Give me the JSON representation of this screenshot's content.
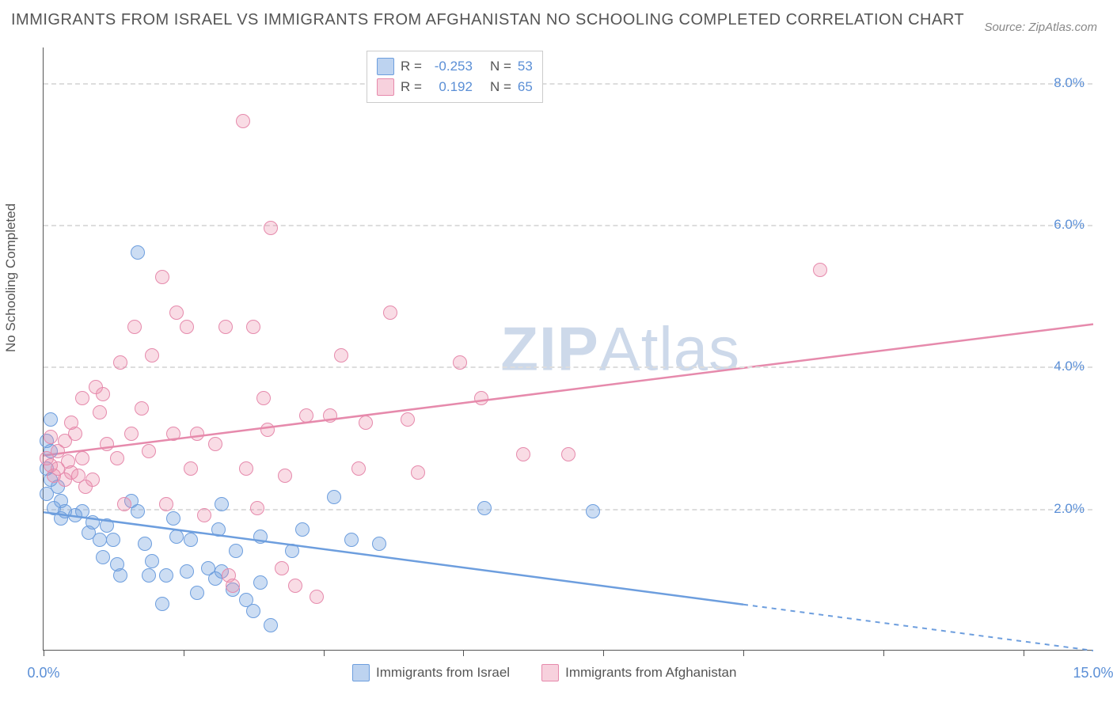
{
  "title": "IMMIGRANTS FROM ISRAEL VS IMMIGRANTS FROM AFGHANISTAN NO SCHOOLING COMPLETED CORRELATION CHART",
  "source": "Source: ZipAtlas.com",
  "ylabel": "No Schooling Completed",
  "watermark_bold": "ZIP",
  "watermark_rest": "Atlas",
  "chart": {
    "type": "scatter",
    "xlim": [
      0,
      15
    ],
    "ylim": [
      0,
      8.5
    ],
    "background_color": "#ffffff",
    "grid_color": "#dddddd",
    "axis_color": "#555555",
    "yticks": [
      2,
      4,
      6,
      8
    ],
    "ytick_labels": [
      "2.0%",
      "4.0%",
      "6.0%",
      "8.0%"
    ],
    "xticks": [
      0,
      2,
      4,
      6,
      8,
      10,
      12,
      14
    ],
    "xtick_labels_shown": {
      "0": "0.0%",
      "15": "15.0%"
    },
    "series": [
      {
        "name": "Immigrants from Israel",
        "color": "#6d9ede",
        "fill": "rgba(109,158,222,0.35)",
        "marker_size": 18,
        "R": "-0.253",
        "N": "53",
        "trend": {
          "x1": 0,
          "y1": 1.95,
          "x2": 15,
          "y2": 0.0,
          "solid_until_x": 10.0
        },
        "points": [
          [
            0.05,
            2.95
          ],
          [
            0.05,
            2.55
          ],
          [
            0.1,
            2.4
          ],
          [
            0.1,
            2.8
          ],
          [
            0.15,
            2.0
          ],
          [
            0.1,
            3.25
          ],
          [
            0.2,
            2.3
          ],
          [
            0.25,
            2.1
          ],
          [
            0.25,
            1.85
          ],
          [
            0.3,
            1.95
          ],
          [
            0.45,
            1.9
          ],
          [
            0.55,
            1.95
          ],
          [
            0.65,
            1.65
          ],
          [
            0.7,
            1.8
          ],
          [
            0.8,
            1.55
          ],
          [
            0.85,
            1.3
          ],
          [
            0.9,
            1.75
          ],
          [
            1.0,
            1.55
          ],
          [
            1.05,
            1.2
          ],
          [
            1.1,
            1.05
          ],
          [
            1.25,
            2.1
          ],
          [
            1.35,
            5.6
          ],
          [
            1.35,
            1.95
          ],
          [
            1.45,
            1.5
          ],
          [
            1.5,
            1.05
          ],
          [
            1.55,
            1.25
          ],
          [
            1.7,
            0.65
          ],
          [
            1.75,
            1.05
          ],
          [
            1.85,
            1.85
          ],
          [
            1.9,
            1.6
          ],
          [
            2.05,
            1.1
          ],
          [
            2.1,
            1.55
          ],
          [
            2.2,
            0.8
          ],
          [
            2.35,
            1.15
          ],
          [
            2.45,
            1.0
          ],
          [
            2.5,
            1.7
          ],
          [
            2.55,
            2.05
          ],
          [
            2.55,
            1.1
          ],
          [
            2.7,
            0.85
          ],
          [
            2.75,
            1.4
          ],
          [
            2.9,
            0.7
          ],
          [
            3.0,
            0.55
          ],
          [
            3.1,
            1.6
          ],
          [
            3.1,
            0.95
          ],
          [
            3.25,
            0.35
          ],
          [
            3.55,
            1.4
          ],
          [
            3.7,
            1.7
          ],
          [
            4.15,
            2.15
          ],
          [
            4.4,
            1.55
          ],
          [
            4.8,
            1.5
          ],
          [
            6.3,
            2.0
          ],
          [
            7.85,
            1.95
          ],
          [
            0.05,
            2.2
          ]
        ]
      },
      {
        "name": "Immigrants from Afghanistan",
        "color": "#e68aac",
        "fill": "rgba(235,140,170,0.30)",
        "marker_size": 18,
        "R": "0.192",
        "N": "65",
        "trend": {
          "x1": 0,
          "y1": 2.75,
          "x2": 15,
          "y2": 4.6,
          "solid_until_x": 15
        },
        "points": [
          [
            0.05,
            2.7
          ],
          [
            0.1,
            2.6
          ],
          [
            0.1,
            3.0
          ],
          [
            0.15,
            2.45
          ],
          [
            0.2,
            2.55
          ],
          [
            0.2,
            2.8
          ],
          [
            0.3,
            2.4
          ],
          [
            0.35,
            2.65
          ],
          [
            0.4,
            2.5
          ],
          [
            0.45,
            3.05
          ],
          [
            0.5,
            2.45
          ],
          [
            0.55,
            3.55
          ],
          [
            0.55,
            2.7
          ],
          [
            0.6,
            2.3
          ],
          [
            0.7,
            2.4
          ],
          [
            0.75,
            3.7
          ],
          [
            0.8,
            3.35
          ],
          [
            0.85,
            3.6
          ],
          [
            0.9,
            2.9
          ],
          [
            1.05,
            2.7
          ],
          [
            1.1,
            4.05
          ],
          [
            1.15,
            2.05
          ],
          [
            1.25,
            3.05
          ],
          [
            1.3,
            4.55
          ],
          [
            1.4,
            3.4
          ],
          [
            1.5,
            2.8
          ],
          [
            1.55,
            4.15
          ],
          [
            1.7,
            5.25
          ],
          [
            1.75,
            2.05
          ],
          [
            1.85,
            3.05
          ],
          [
            1.9,
            4.75
          ],
          [
            2.05,
            4.55
          ],
          [
            2.1,
            2.55
          ],
          [
            2.2,
            3.05
          ],
          [
            2.3,
            1.9
          ],
          [
            2.45,
            2.9
          ],
          [
            2.6,
            4.55
          ],
          [
            2.65,
            1.05
          ],
          [
            2.7,
            0.9
          ],
          [
            2.85,
            7.45
          ],
          [
            2.9,
            2.55
          ],
          [
            3.0,
            4.55
          ],
          [
            3.05,
            2.0
          ],
          [
            3.15,
            3.55
          ],
          [
            3.2,
            3.1
          ],
          [
            3.25,
            5.95
          ],
          [
            3.4,
            1.15
          ],
          [
            3.45,
            2.45
          ],
          [
            3.6,
            0.9
          ],
          [
            3.75,
            3.3
          ],
          [
            3.9,
            0.75
          ],
          [
            4.1,
            3.3
          ],
          [
            4.25,
            4.15
          ],
          [
            4.5,
            2.55
          ],
          [
            4.6,
            3.2
          ],
          [
            4.95,
            4.75
          ],
          [
            5.2,
            3.25
          ],
          [
            5.35,
            2.5
          ],
          [
            5.95,
            4.05
          ],
          [
            6.25,
            3.55
          ],
          [
            6.85,
            2.75
          ],
          [
            7.5,
            2.75
          ],
          [
            11.1,
            5.35
          ],
          [
            0.3,
            2.95
          ],
          [
            0.4,
            3.2
          ]
        ]
      }
    ],
    "legend_box": {
      "rows": [
        {
          "swatch": "blue",
          "r_label": "R =",
          "r_val": "-0.253",
          "n_label": "N =",
          "n_val": "53"
        },
        {
          "swatch": "pink",
          "r_label": "R =",
          "r_val": "0.192",
          "n_label": "N =",
          "n_val": "65"
        }
      ]
    },
    "bottom_legend": [
      {
        "swatch": "blue",
        "label": "Immigrants from Israel"
      },
      {
        "swatch": "pink",
        "label": "Immigrants from Afghanistan"
      }
    ]
  }
}
